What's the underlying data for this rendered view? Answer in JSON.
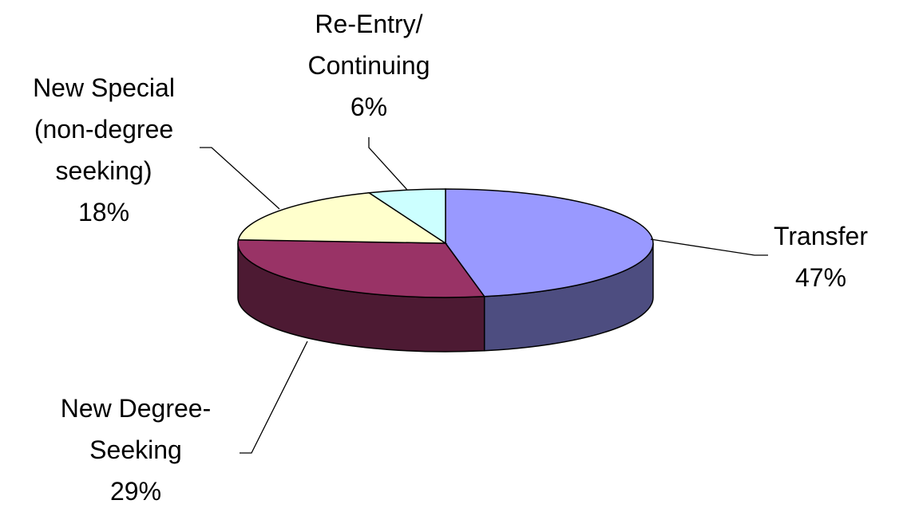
{
  "chart_data": {
    "type": "pie",
    "categories": [
      "Transfer",
      "New Degree-\nSeeking",
      "New Special\n(non-degree\nseeking)",
      "Re-Entry/\nContinuing"
    ],
    "values": [
      47,
      29,
      18,
      6
    ],
    "value_labels": [
      "47%",
      "29%",
      "18%",
      "6%"
    ],
    "colors": [
      "#9999ff",
      "#993366",
      "#ffffcc",
      "#ccffff"
    ],
    "side_colors": [
      "#4d4d80",
      "#4d1a33",
      "#808066",
      "#668080"
    ]
  }
}
